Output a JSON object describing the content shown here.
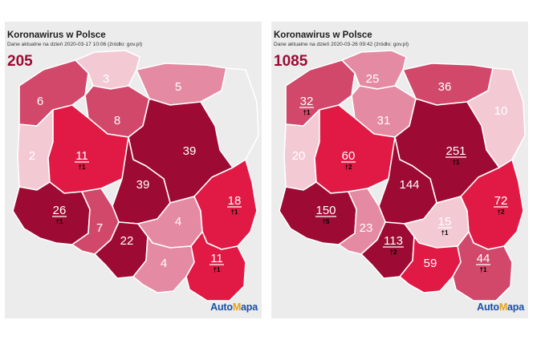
{
  "colors": {
    "level1": "#f3c9d4",
    "level2": "#e58aa3",
    "level3": "#d1486b",
    "level4": "#e01a44",
    "level5": "#9d0a33",
    "background": "#ececec",
    "logo_auto": "#1a4fa5",
    "logo_mapa_accent": "#e3a21a"
  },
  "maps": [
    {
      "title": "Koronawirus w Polsce",
      "date_text": "Dane aktualne na dzień 2020-03-17 10:06 (źródło: gov.pl)",
      "total": "205",
      "regions": [
        {
          "id": "zachodniopomorskie",
          "value": "6",
          "deaths": "",
          "level": 3
        },
        {
          "id": "pomorskie",
          "value": "3",
          "deaths": "",
          "level": 1
        },
        {
          "id": "warminsko-mazurskie",
          "value": "5",
          "deaths": "",
          "level": 2
        },
        {
          "id": "podlaskie",
          "value": "",
          "deaths": "",
          "level": 0
        },
        {
          "id": "kujawsko-pomorskie",
          "value": "8",
          "deaths": "",
          "level": 3
        },
        {
          "id": "lubuskie",
          "value": "2",
          "deaths": "",
          "level": 1
        },
        {
          "id": "wielkopolskie",
          "value": "11",
          "deaths": "†1",
          "level": 4
        },
        {
          "id": "mazowieckie",
          "value": "39",
          "deaths": "",
          "level": 5
        },
        {
          "id": "lodzkie",
          "value": "39",
          "deaths": "",
          "level": 5
        },
        {
          "id": "dolnoslaskie",
          "value": "26",
          "deaths": "†1",
          "level": 5
        },
        {
          "id": "opolskie",
          "value": "7",
          "deaths": "",
          "level": 3
        },
        {
          "id": "slaskie",
          "value": "22",
          "deaths": "",
          "level": 5
        },
        {
          "id": "swietokrzyskie",
          "value": "4",
          "deaths": "",
          "level": 2
        },
        {
          "id": "lubelskie",
          "value": "18",
          "deaths": "†1",
          "level": 4
        },
        {
          "id": "malopolskie",
          "value": "4",
          "deaths": "",
          "level": 2
        },
        {
          "id": "podkarpackie",
          "value": "11",
          "deaths": "†1",
          "level": 4
        }
      ],
      "logo": {
        "part1": "Auto",
        "part2": "M",
        "part3": "apa"
      }
    },
    {
      "title": "Koronawirus w Polsce",
      "date_text": "Dane aktualne na dzień 2020-03-26 09:42 (źródło: gov.pl)",
      "total": "1085",
      "regions": [
        {
          "id": "zachodniopomorskie",
          "value": "32",
          "deaths": "†1",
          "level": 3
        },
        {
          "id": "pomorskie",
          "value": "25",
          "deaths": "",
          "level": 2
        },
        {
          "id": "warminsko-mazurskie",
          "value": "36",
          "deaths": "",
          "level": 3
        },
        {
          "id": "podlaskie",
          "value": "10",
          "deaths": "",
          "level": 1
        },
        {
          "id": "kujawsko-pomorskie",
          "value": "31",
          "deaths": "",
          "level": 2
        },
        {
          "id": "lubuskie",
          "value": "20",
          "deaths": "",
          "level": 1
        },
        {
          "id": "wielkopolskie",
          "value": "60",
          "deaths": "†2",
          "level": 4
        },
        {
          "id": "mazowieckie",
          "value": "251",
          "deaths": "†1",
          "level": 5
        },
        {
          "id": "lodzkie",
          "value": "144",
          "deaths": "",
          "level": 5
        },
        {
          "id": "dolnoslaskie",
          "value": "150",
          "deaths": "†5",
          "level": 5
        },
        {
          "id": "opolskie",
          "value": "23",
          "deaths": "",
          "level": 2
        },
        {
          "id": "slaskie",
          "value": "113",
          "deaths": "†2",
          "level": 5
        },
        {
          "id": "swietokrzyskie",
          "value": "15",
          "deaths": "†1",
          "level": 1
        },
        {
          "id": "lubelskie",
          "value": "72",
          "deaths": "†2",
          "level": 4
        },
        {
          "id": "malopolskie",
          "value": "59",
          "deaths": "",
          "level": 4
        },
        {
          "id": "podkarpackie",
          "value": "44",
          "deaths": "†1",
          "level": 3
        }
      ],
      "logo": {
        "part1": "Auto",
        "part2": "M",
        "part3": "apa"
      }
    }
  ]
}
